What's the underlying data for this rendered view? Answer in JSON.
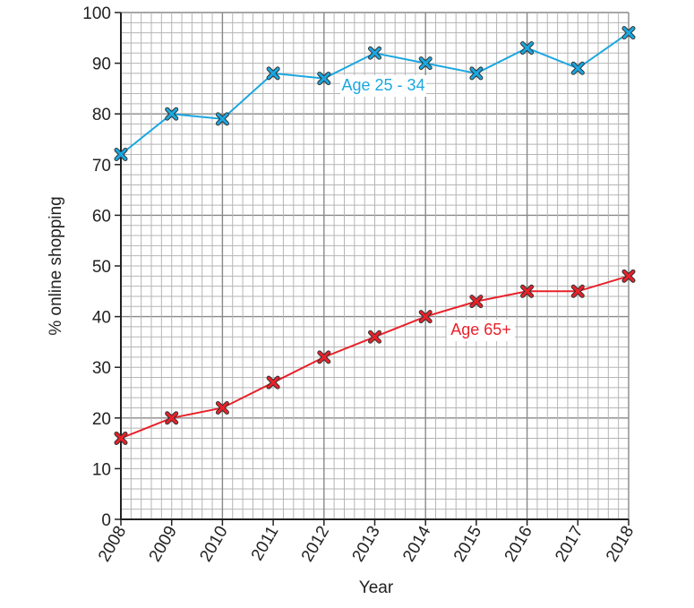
{
  "chart_data": {
    "type": "line",
    "title": "",
    "xlabel": "Year",
    "ylabel": "% online shopping",
    "x": [
      2008,
      2009,
      2010,
      2011,
      2012,
      2013,
      2014,
      2015,
      2016,
      2017,
      2018
    ],
    "xlim": [
      2008,
      2018
    ],
    "ylim": [
      0,
      100
    ],
    "yticks": [
      0,
      10,
      20,
      30,
      40,
      50,
      60,
      70,
      80,
      90,
      100
    ],
    "grid": true,
    "series": [
      {
        "name": "Age 25 - 34",
        "color": "#1aa7e0",
        "values": [
          72,
          80,
          79,
          88,
          87,
          92,
          90,
          88,
          93,
          89,
          96
        ]
      },
      {
        "name": "Age 65+",
        "color": "#e8212a",
        "values": [
          16,
          20,
          22,
          27,
          32,
          36,
          40,
          43,
          45,
          45,
          48
        ]
      }
    ]
  }
}
